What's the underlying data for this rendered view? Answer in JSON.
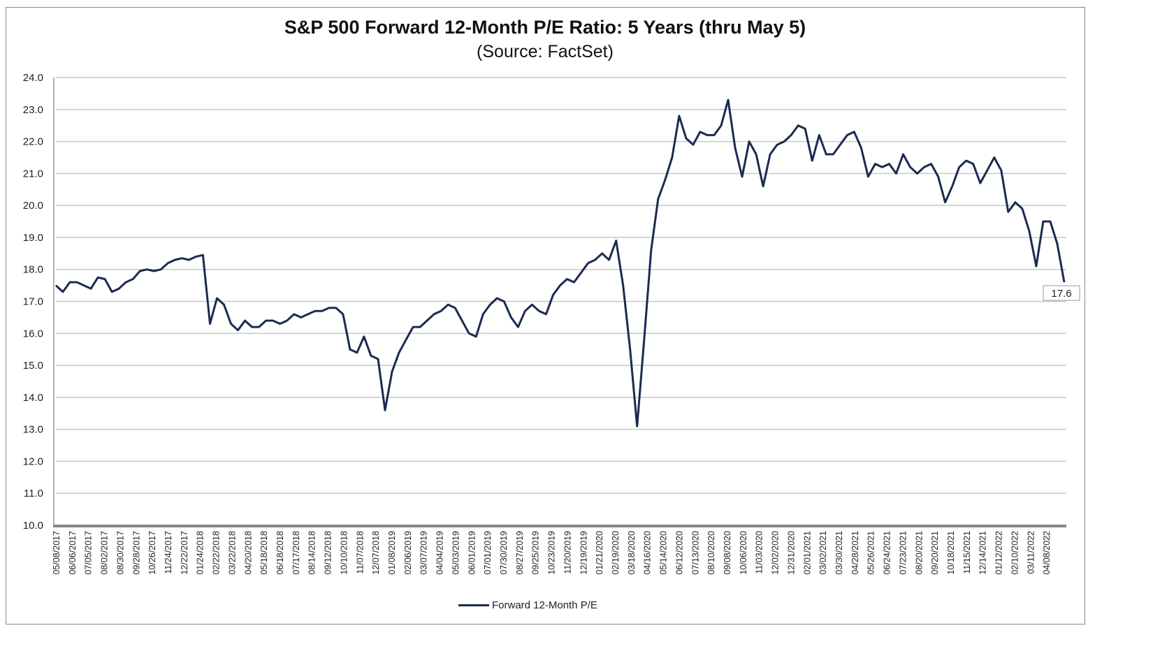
{
  "chart_data": {
    "type": "line",
    "title": "S&P 500 Forward 12-Month P/E Ratio: 5 Years (thru May 5)",
    "subtitle": "(Source: FactSet)",
    "xlabel": "",
    "ylabel": "",
    "ylim": [
      10,
      24
    ],
    "yticks": [
      "10.0",
      "11.0",
      "12.0",
      "13.0",
      "14.0",
      "15.0",
      "16.0",
      "17.0",
      "18.0",
      "19.0",
      "20.0",
      "21.0",
      "22.0",
      "23.0",
      "24.0"
    ],
    "xticks": [
      "05/08/2017",
      "06/06/2017",
      "07/05/2017",
      "08/02/2017",
      "08/30/2017",
      "09/28/2017",
      "10/26/2017",
      "11/24/2017",
      "12/22/2017",
      "01/24/2018",
      "02/22/2018",
      "03/22/2018",
      "04/20/2018",
      "05/18/2018",
      "06/18/2018",
      "07/17/2018",
      "08/14/2018",
      "09/12/2018",
      "10/10/2018",
      "11/07/2018",
      "12/07/2018",
      "01/08/2019",
      "02/06/2019",
      "03/07/2019",
      "04/04/2019",
      "05/03/2019",
      "06/01/2019",
      "07/01/2019",
      "07/30/2019",
      "08/27/2019",
      "09/25/2019",
      "10/23/2019",
      "11/20/2019",
      "12/19/2019",
      "01/21/2020",
      "02/19/2020",
      "03/18/2020",
      "04/16/2020",
      "05/14/2020",
      "06/12/2020",
      "07/13/2020",
      "08/10/2020",
      "09/08/2020",
      "10/06/2020",
      "11/03/2020",
      "12/02/2020",
      "12/31/2020",
      "02/01/2021",
      "03/02/2021",
      "03/30/2021",
      "04/28/2021",
      "05/26/2021",
      "06/24/2021",
      "07/23/2021",
      "08/20/2021",
      "09/20/2021",
      "10/18/2021",
      "11/15/2021",
      "12/14/2021",
      "01/12/2022",
      "02/10/2022",
      "03/11/2022",
      "04/08/2022"
    ],
    "grid": true,
    "legend_position": "bottom",
    "series": [
      {
        "name": "Forward 12-Month P/E",
        "color": "#1c2a52",
        "values": [
          17.5,
          17.3,
          17.6,
          17.6,
          17.5,
          17.4,
          17.75,
          17.7,
          17.3,
          17.4,
          17.6,
          17.7,
          17.95,
          18.0,
          17.95,
          18.0,
          18.2,
          18.3,
          18.35,
          18.3,
          18.4,
          18.45,
          16.3,
          17.1,
          16.9,
          16.3,
          16.1,
          16.4,
          16.2,
          16.2,
          16.4,
          16.4,
          16.3,
          16.4,
          16.6,
          16.5,
          16.6,
          16.7,
          16.7,
          16.8,
          16.8,
          16.6,
          15.5,
          15.4,
          15.9,
          15.3,
          15.2,
          13.6,
          14.8,
          15.4,
          15.8,
          16.2,
          16.2,
          16.4,
          16.6,
          16.7,
          16.9,
          16.8,
          16.4,
          16.0,
          15.9,
          16.6,
          16.9,
          17.1,
          17.0,
          16.5,
          16.2,
          16.7,
          16.9,
          16.7,
          16.6,
          17.2,
          17.5,
          17.7,
          17.6,
          17.9,
          18.2,
          18.3,
          18.5,
          18.3,
          18.9,
          17.5,
          15.5,
          13.1,
          15.8,
          18.6,
          20.2,
          20.8,
          21.5,
          22.8,
          22.1,
          21.9,
          22.3,
          22.2,
          22.2,
          22.5,
          23.3,
          21.8,
          20.9,
          22.0,
          21.6,
          20.6,
          21.6,
          21.9,
          22.0,
          22.2,
          22.5,
          22.4,
          21.4,
          22.2,
          21.6,
          21.6,
          21.9,
          22.2,
          22.3,
          21.8,
          20.9,
          21.3,
          21.2,
          21.3,
          21.0,
          21.6,
          21.2,
          21.0,
          21.2,
          21.3,
          20.9,
          20.1,
          20.6,
          21.2,
          21.4,
          21.3,
          20.7,
          21.1,
          21.5,
          21.1,
          19.8,
          20.1,
          19.9,
          19.2,
          18.1,
          19.5,
          19.5,
          18.8,
          17.6
        ]
      }
    ],
    "annotations": [
      {
        "text": "17.6",
        "at": "last point"
      }
    ]
  }
}
